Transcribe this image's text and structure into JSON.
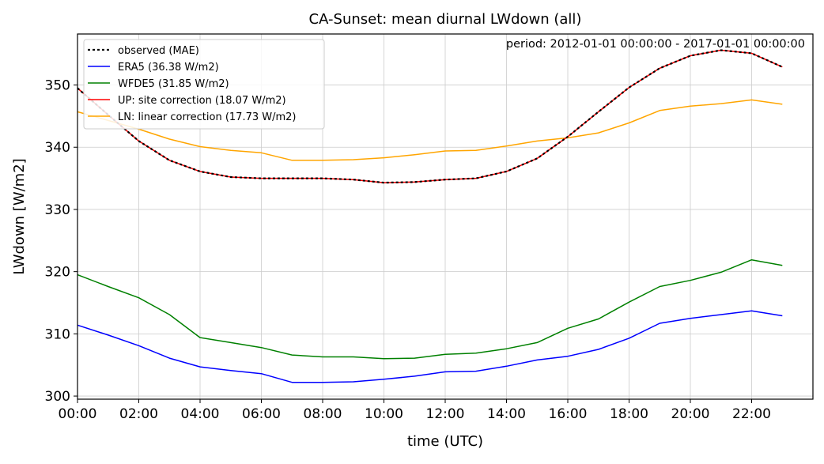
{
  "chart_data": {
    "type": "line",
    "title": "CA-Sunset: mean diurnal LWdown (all)",
    "xlabel": "time (UTC)",
    "ylabel": "LWdown [W/m2]",
    "annotation": "period: 2012-01-01 00:00:00 - 2017-01-01 00:00:00",
    "x_ticks": [
      "00:00",
      "02:00",
      "04:00",
      "06:00",
      "08:00",
      "10:00",
      "12:00",
      "14:00",
      "16:00",
      "18:00",
      "20:00",
      "22:00"
    ],
    "y_ticks": [
      "300",
      "310",
      "320",
      "330",
      "340",
      "350"
    ],
    "xlim": [
      0,
      24
    ],
    "ylim": [
      299.5,
      358.2
    ],
    "grid": true,
    "legend_position": "top-left",
    "x": [
      0,
      1,
      2,
      3,
      4,
      5,
      6,
      7,
      8,
      9,
      10,
      11,
      12,
      13,
      14,
      15,
      16,
      17,
      18,
      19,
      20,
      21,
      22,
      23
    ],
    "series": [
      {
        "name": "observed (MAE)",
        "color": "#000000",
        "style": "dotted",
        "values": [
          349.5,
          345.2,
          341.0,
          337.9,
          336.1,
          335.2,
          335.0,
          335.0,
          335.0,
          334.8,
          334.3,
          334.4,
          334.8,
          335.0,
          336.1,
          338.2,
          341.7,
          345.7,
          349.6,
          352.7,
          354.7,
          355.6,
          355.1,
          352.9
        ]
      },
      {
        "name": "ERA5 (36.38 W/m2)",
        "color": "#0000ff",
        "style": "solid",
        "values": [
          311.4,
          309.8,
          308.1,
          306.1,
          304.7,
          304.1,
          303.6,
          302.2,
          302.2,
          302.3,
          302.7,
          303.2,
          303.9,
          304.0,
          304.8,
          305.8,
          306.4,
          307.5,
          309.3,
          311.7,
          312.5,
          313.1,
          313.7,
          312.9
        ]
      },
      {
        "name": "WFDE5 (31.85 W/m2)",
        "color": "#008000",
        "style": "solid",
        "values": [
          319.5,
          317.6,
          315.8,
          313.1,
          309.4,
          308.6,
          307.8,
          306.6,
          306.3,
          306.3,
          306.0,
          306.1,
          306.7,
          306.9,
          307.6,
          308.6,
          310.9,
          312.4,
          315.1,
          317.6,
          318.6,
          319.9,
          321.9,
          321.0
        ]
      },
      {
        "name": "UP: site correction (18.07 W/m2)",
        "color": "#ff0000",
        "style": "solid",
        "values": [
          349.5,
          345.2,
          341.0,
          337.9,
          336.1,
          335.2,
          335.0,
          335.0,
          335.0,
          334.8,
          334.3,
          334.4,
          334.8,
          335.0,
          336.1,
          338.2,
          341.7,
          345.7,
          349.6,
          352.7,
          354.7,
          355.6,
          355.1,
          352.9
        ]
      },
      {
        "name": "LN: linear correction (17.73 W/m2)",
        "color": "#ffa500",
        "style": "solid",
        "values": [
          345.7,
          344.3,
          342.9,
          341.3,
          340.1,
          339.5,
          339.1,
          337.9,
          337.9,
          338.0,
          338.3,
          338.8,
          339.4,
          339.5,
          340.2,
          341.0,
          341.5,
          342.3,
          343.9,
          345.9,
          346.6,
          347.0,
          347.6,
          346.9
        ]
      }
    ]
  }
}
